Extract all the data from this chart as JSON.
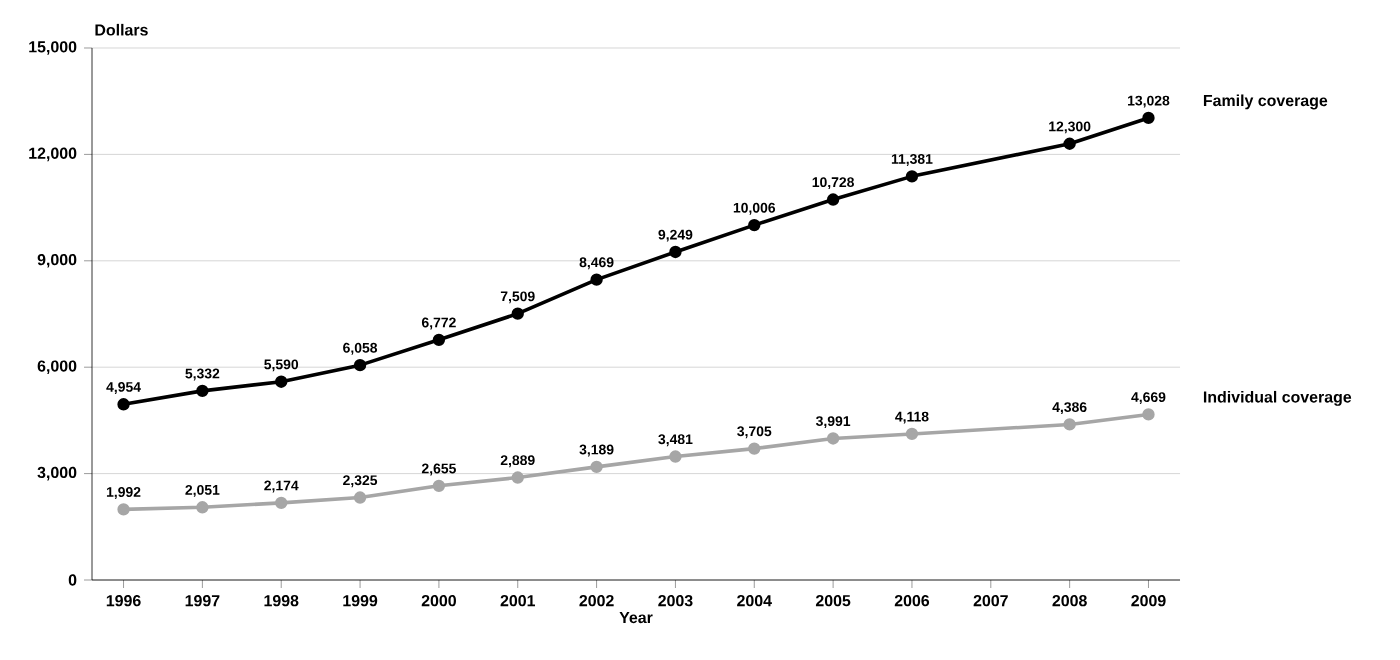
{
  "chart_data": {
    "type": "line",
    "xlabel": "Year",
    "ylabel": "Dollars",
    "x": [
      1996,
      1997,
      1998,
      1999,
      2000,
      2001,
      2002,
      2003,
      2004,
      2005,
      2006,
      2008,
      2009
    ],
    "xlim": [
      1995.6,
      2009.4
    ],
    "xticks": [
      1996,
      1997,
      1998,
      1999,
      2000,
      2001,
      2002,
      2003,
      2004,
      2005,
      2006,
      2007,
      2008,
      2009
    ],
    "ylim": [
      0,
      15000
    ],
    "yticks": [
      0,
      {
        "value": 3000,
        "label": "3,000"
      },
      {
        "value": 6000,
        "label": "6,000"
      },
      {
        "value": 9000,
        "label": "9,000"
      },
      {
        "value": 12000,
        "label": "12,000"
      },
      {
        "value": 15000,
        "label": "15,000"
      }
    ],
    "grid": "y",
    "marker": "circle",
    "line_style": "solid",
    "series": [
      {
        "name": "Family coverage",
        "color": "#000000",
        "values": [
          4954,
          5332,
          5590,
          6058,
          6772,
          7509,
          8469,
          9249,
          10006,
          10728,
          11381,
          12300,
          13028
        ],
        "value_labels": [
          "4,954",
          "5,332",
          "5,590",
          "6,058",
          "6,772",
          "7,509",
          "8,469",
          "9,249",
          "10,006",
          "10,728",
          "11,381",
          "12,300",
          "13,028"
        ]
      },
      {
        "name": "Individual coverage",
        "color": "#a6a6a6",
        "values": [
          1992,
          2051,
          2174,
          2325,
          2655,
          2889,
          3189,
          3481,
          3705,
          3991,
          4118,
          4386,
          4669
        ],
        "value_labels": [
          "1,992",
          "2,051",
          "2,174",
          "2,325",
          "2,655",
          "2,889",
          "3,189",
          "3,481",
          "3,705",
          "3,991",
          "4,118",
          "4,386",
          "4,669"
        ]
      }
    ]
  }
}
